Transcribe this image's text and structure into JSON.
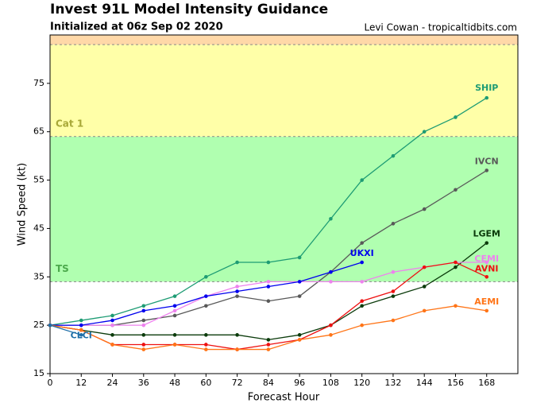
{
  "chart_data": {
    "type": "line",
    "title": "Invest 91L Model Intensity Guidance",
    "subtitle": "Initialized at 06z Sep 02 2020",
    "credit": "Levi Cowan - tropicaltidbits.com",
    "x_label": "Forecast Hour",
    "y_label": "Wind Speed (kt)",
    "x": [
      0,
      12,
      24,
      36,
      48,
      60,
      72,
      84,
      96,
      108,
      120,
      132,
      144,
      156,
      168
    ],
    "xlim": [
      0,
      180
    ],
    "ylim": [
      15,
      85
    ],
    "xticks": [
      0,
      12,
      24,
      36,
      48,
      60,
      72,
      84,
      96,
      108,
      120,
      132,
      144,
      156,
      168
    ],
    "yticks": [
      15,
      25,
      35,
      45,
      55,
      65,
      75
    ],
    "bands": [
      {
        "label": "TS",
        "from": 34,
        "to": 64,
        "color": "#b0ffb0",
        "label_color": "#4caa4c"
      },
      {
        "label": "Cat 1",
        "from": 64,
        "to": 83,
        "color": "#ffffa8",
        "label_color": "#a8a838"
      },
      {
        "from": 83,
        "to": 85,
        "color": "#ffd8a8"
      }
    ],
    "series": [
      {
        "name": "SHIP",
        "color": "#1e9c74",
        "values": [
          25,
          26,
          27,
          29,
          31,
          35,
          38,
          38,
          39,
          47,
          55,
          60,
          65,
          68,
          72
        ]
      },
      {
        "name": "IVCN",
        "color": "#595959",
        "values": [
          25,
          25,
          25,
          26,
          27,
          29,
          31,
          30,
          31,
          36,
          42,
          46,
          49,
          53,
          57
        ]
      },
      {
        "name": "LGEM",
        "color": "#0b3b0b",
        "values": [
          25,
          24,
          23,
          23,
          23,
          23,
          23,
          22,
          23,
          25,
          29,
          31,
          33,
          37,
          42
        ]
      },
      {
        "name": "CEMI",
        "color": "#ee82ee",
        "values": [
          25,
          25,
          25,
          25,
          28,
          31,
          33,
          34,
          34,
          34,
          34,
          36,
          37,
          38,
          38
        ]
      },
      {
        "name": "UKXI",
        "color": "#0000ee",
        "values": [
          25,
          25,
          26,
          28,
          29,
          31,
          32,
          33,
          34,
          36,
          38,
          null,
          null,
          null,
          null
        ]
      },
      {
        "name": "AVNI",
        "color": "#ee1111",
        "values": [
          25,
          24,
          21,
          21,
          21,
          21,
          20,
          21,
          22,
          25,
          30,
          32,
          37,
          38,
          35
        ]
      },
      {
        "name": "AEMI",
        "color": "#ff7518",
        "values": [
          25,
          24,
          21,
          20,
          21,
          20,
          20,
          20,
          22,
          23,
          25,
          26,
          28,
          29,
          28
        ]
      },
      {
        "name": "CLCI",
        "color": "#1f6fa8",
        "values": [
          25,
          23,
          null,
          null,
          null,
          null,
          null,
          null,
          null,
          null,
          null,
          null,
          null,
          null,
          null
        ]
      }
    ]
  }
}
